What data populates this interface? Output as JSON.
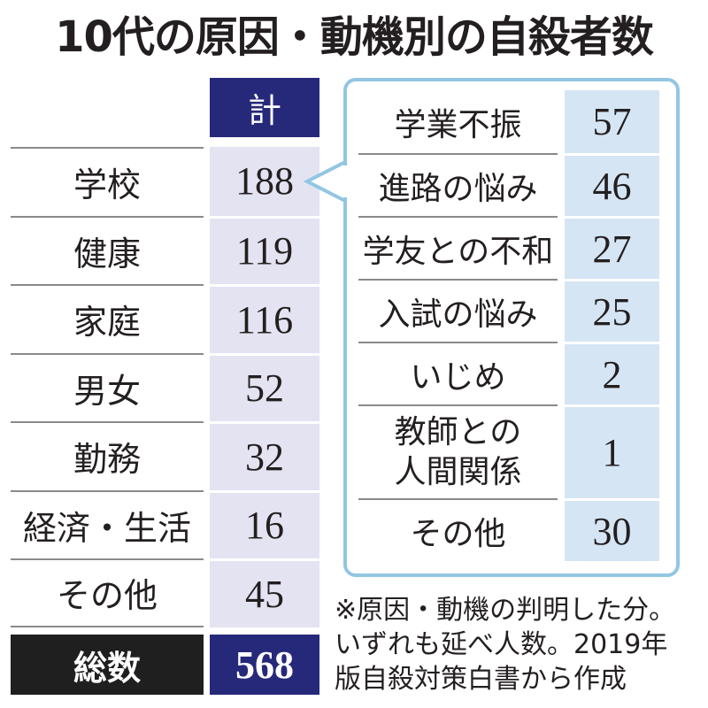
{
  "colors": {
    "navy": "#26297a",
    "lavender": "#e4e3f2",
    "sky": "#d5e5f4",
    "panel": "#92c6e3",
    "black": "#1f1f1f",
    "rule": "#8a8a8a",
    "ink": "#231f20"
  },
  "chart_data": {
    "type": "table",
    "title": "10代の原因・動機別の自殺者数",
    "column_header": "計",
    "categories": [
      "学校",
      "健康",
      "家庭",
      "男女",
      "勤務",
      "経済・生活",
      "その他"
    ],
    "values": [
      188,
      119,
      116,
      52,
      32,
      16,
      45
    ],
    "total": {
      "label": "総数",
      "value": 568
    },
    "breakdown": {
      "parent_index": 0,
      "categories": [
        "学業不振",
        "進路の悩み",
        "学友との不和",
        "入試の悩み",
        "いじめ",
        "教師との人間関係",
        "その他"
      ],
      "values": [
        57,
        46,
        27,
        25,
        2,
        1,
        30
      ]
    }
  },
  "footnote": [
    "※原因・動機の判明した分。",
    "いずれも延べ人数。2019年",
    "版自殺対策白書から作成"
  ]
}
